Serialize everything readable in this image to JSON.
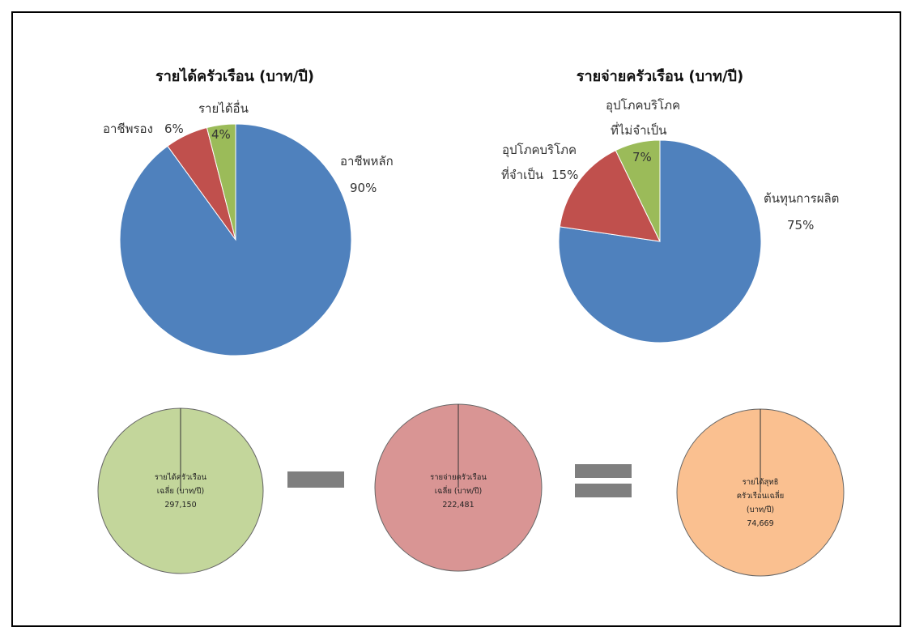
{
  "chart_data": [
    {
      "type": "pie",
      "title": "รายได้ครัวเรือน (บาท/ปี)",
      "slices": [
        {
          "name": "อาชีพหลัก",
          "value": 90,
          "label_value": "90%",
          "color": "#4F81BD"
        },
        {
          "name": "อาชีพรอง",
          "value": 6,
          "label_value": "6%",
          "color": "#C0504D"
        },
        {
          "name": "รายได้อื่น",
          "value": 4,
          "label_value": "4%",
          "color": "#9BBB59"
        }
      ]
    },
    {
      "type": "pie",
      "title": "รายจ่ายครัวเรือน (บาท/ปี)",
      "slices": [
        {
          "name": "ต้นทุนการผลิต",
          "value": 75,
          "label_value": "75%",
          "color": "#4F81BD"
        },
        {
          "name_lines": [
            "อุปโภคบริโภค",
            "ที่จำเป็น"
          ],
          "value": 15,
          "label_value": "15%",
          "color": "#C0504D"
        },
        {
          "name_lines": [
            "อุปโภคบริโภค",
            "ที่ไม่จำเป็น"
          ],
          "value": 7,
          "label_value": "7%",
          "color": "#9BBB59"
        }
      ]
    }
  ],
  "equation": {
    "circles": [
      {
        "lines": [
          "รายได้ครัวเรือน",
          "เฉลี่ย (บาท/ปี)",
          "297,150"
        ],
        "color": "#C3D69B"
      },
      {
        "lines": [
          "รายจ่ายครัวเรือน",
          "เฉลี่ย (บาท/ปี)",
          "222,481"
        ],
        "color": "#D99594"
      },
      {
        "lines": [
          "รายได้สุทธิ",
          "ครัวเรือนเฉลี่ย",
          "(บาท/ปี)",
          "74,669"
        ],
        "color": "#FAC090"
      }
    ],
    "operator_color": "#7F7F7F"
  }
}
